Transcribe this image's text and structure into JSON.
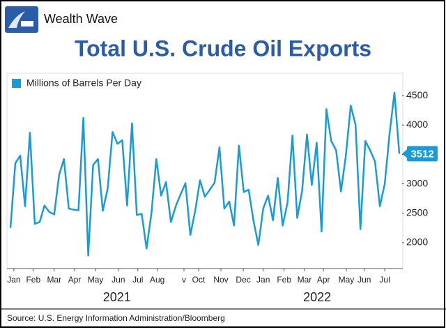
{
  "brand": "Wealth Wave",
  "source": "Source: U.S. Energy Information Administration/Bloomberg",
  "chart_data": {
    "type": "line",
    "title": "Total U.S. Crude Oil Exports",
    "series": [
      {
        "name": "Millions of Barrels Per Day",
        "color": "#1a9bd7",
        "values": [
          2250,
          3350,
          3480,
          2620,
          3870,
          2320,
          2350,
          2630,
          2520,
          2480,
          3150,
          3420,
          2580,
          2560,
          2550,
          4120,
          1780,
          3320,
          3420,
          2540,
          2920,
          3880,
          3680,
          3740,
          2630,
          4030,
          2470,
          2490,
          1900,
          2500,
          3420,
          2800,
          3030,
          2350,
          2620,
          2820,
          3010,
          2130,
          2540,
          3060,
          2780,
          2900,
          3020,
          3620,
          2580,
          2700,
          2290,
          3650,
          2860,
          2900,
          2370,
          1960,
          2580,
          2800,
          2380,
          3100,
          2290,
          2680,
          3820,
          2420,
          2880,
          3840,
          2980,
          3700,
          2190,
          4270,
          3730,
          3570,
          2870,
          3480,
          4330,
          4000,
          2230,
          3730,
          3570,
          3380,
          2620,
          3000,
          3850,
          4550,
          3512
        ]
      }
    ],
    "xlim": [
      0,
      80
    ],
    "xticks": [
      {
        "value": 0.7,
        "label": "Jan"
      },
      {
        "value": 4.7,
        "label": "Feb"
      },
      {
        "value": 9,
        "label": "Mar"
      },
      {
        "value": 13.2,
        "label": "Apr"
      },
      {
        "value": 17.5,
        "label": "May"
      },
      {
        "value": 22.2,
        "label": "Jun"
      },
      {
        "value": 26.2,
        "label": "Jul"
      },
      {
        "value": 30.2,
        "label": "Aug"
      },
      {
        "value": 35.7,
        "label": "v"
      },
      {
        "value": 38.7,
        "label": "Oct"
      },
      {
        "value": 43.3,
        "label": "Nov"
      },
      {
        "value": 47.9,
        "label": "Dec"
      },
      {
        "value": 52,
        "label": "Jan"
      },
      {
        "value": 56.3,
        "label": "Feb"
      },
      {
        "value": 60.5,
        "label": "Mar"
      },
      {
        "value": 64.4,
        "label": "Apr"
      },
      {
        "value": 69.1,
        "label": "May"
      },
      {
        "value": 72.8,
        "label": "Jun"
      },
      {
        "value": 77,
        "label": "Jul"
      }
    ],
    "year_labels": [
      {
        "value": 21.9,
        "label": "2021"
      },
      {
        "value": 63.1,
        "label": "2022"
      }
    ],
    "ylim": [
      1560,
      4880
    ],
    "yticks": [
      2000,
      2500,
      3000,
      3500,
      4000,
      4500
    ],
    "y_axis_side": "right",
    "grid": false
  }
}
